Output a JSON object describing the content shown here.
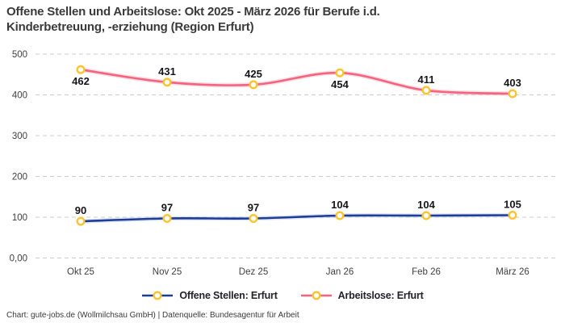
{
  "title": {
    "line1": "Offene Stellen und Arbeitslose: Okt 2025 - März 2026 für Berufe i.d.",
    "line2": "Kinderbetreuung, -erziehung (Region Erfurt)"
  },
  "footer": {
    "credit": "Chart: gute-jobs.de (Wollmilchsau GmbH) | Datenquelle: Bundesagentur für Arbeit"
  },
  "colors": {
    "title_text": "#3a3a3a",
    "axis_text": "#3f3f3f",
    "data_label_text": "#16161a",
    "gridline": "#cccccc",
    "background": "#ffffff"
  },
  "chart_data": {
    "type": "line",
    "title": "Offene Stellen und Arbeitslose: Okt 2025 - März 2026 für Berufe i.d. Kinderbetreuung, -erziehung (Region Erfurt)",
    "categories": [
      "Okt 25",
      "Nov 25",
      "Dez 25",
      "Jan 26",
      "Feb 26",
      "März 26"
    ],
    "series": [
      {
        "name": "Offene Stellen: Erfurt",
        "color": "#1e3d96",
        "halo_color": "#c7d2ef",
        "values": [
          90,
          97,
          97,
          104,
          104,
          105
        ],
        "label_positions": [
          "above",
          "above",
          "above",
          "above",
          "above",
          "above"
        ]
      },
      {
        "name": "Arbeitslose: Erfurt",
        "color": "#f5647e",
        "halo_color": "#fcc3cf",
        "values": [
          462,
          431,
          425,
          454,
          411,
          403
        ],
        "label_positions": [
          "below",
          "above",
          "above",
          "below",
          "above",
          "above"
        ]
      }
    ],
    "marker": {
      "fill": "#ffffff",
      "stroke": "#fdc42f"
    },
    "y_ticks": [
      {
        "value": 0,
        "label": "0,00"
      },
      {
        "value": 100,
        "label": "100"
      },
      {
        "value": 200,
        "label": "200"
      },
      {
        "value": 300,
        "label": "300"
      },
      {
        "value": 400,
        "label": "400"
      },
      {
        "value": 500,
        "label": "500"
      }
    ],
    "ylim": [
      0,
      500
    ],
    "xlabel": "",
    "ylabel": "",
    "grid": "horizontal-dashed",
    "legend_position": "bottom",
    "curve": "smooth"
  }
}
